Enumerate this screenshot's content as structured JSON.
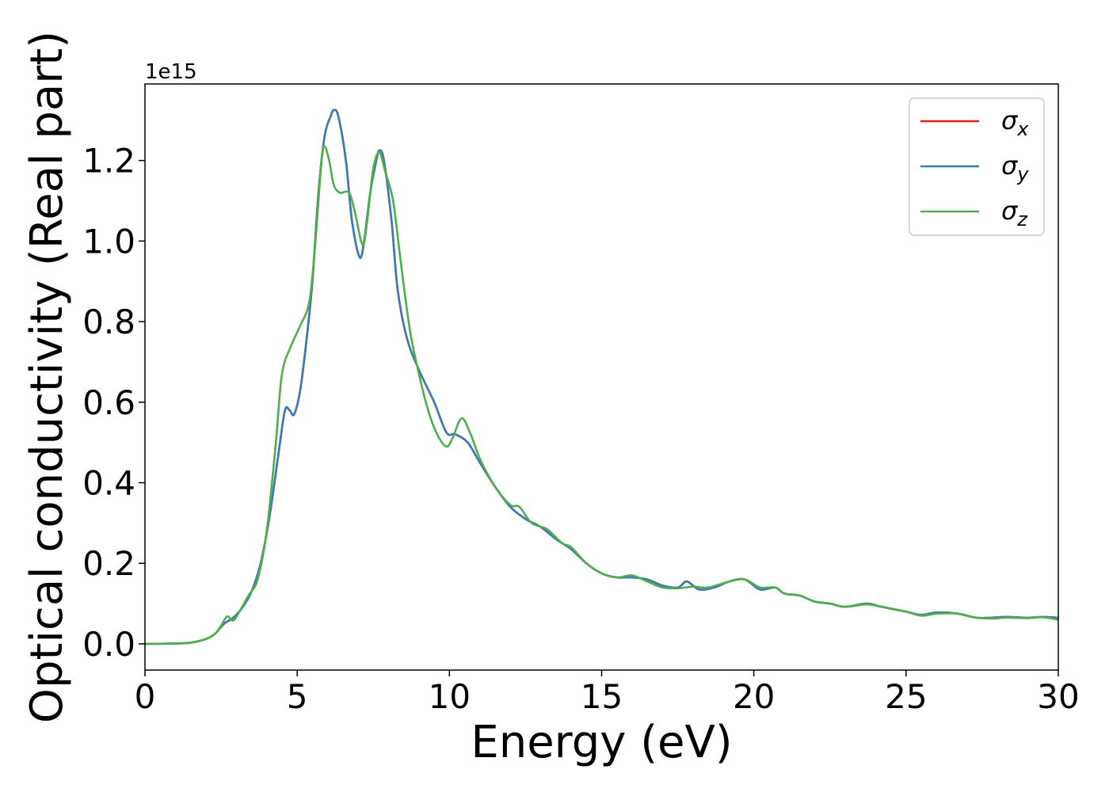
{
  "chart_data": {
    "type": "line",
    "xlabel": "Energy (eV)",
    "ylabel": "Optical conductivity (Real part)",
    "y_offset_label": "1e15",
    "xlim": [
      0,
      30
    ],
    "ylim": [
      -0.065,
      1.39
    ],
    "x_ticks": [
      0,
      5,
      10,
      15,
      20,
      25,
      30
    ],
    "y_ticks": [
      0.0,
      0.2,
      0.4,
      0.6,
      0.8,
      1.0,
      1.2
    ],
    "x_tick_labels": [
      "0",
      "5",
      "10",
      "15",
      "20",
      "25",
      "30"
    ],
    "y_tick_labels": [
      "0.0",
      "0.2",
      "0.4",
      "0.6",
      "0.8",
      "1.0",
      "1.2"
    ],
    "grid": false,
    "legend_position": "top-right",
    "series": [
      {
        "name": "σx",
        "symbol": "σ",
        "subscript": "x",
        "color": "#e41a1c",
        "points": [
          [
            0,
            0
          ],
          [
            1,
            0.001
          ],
          [
            1.5,
            0.003
          ],
          [
            2,
            0.012
          ],
          [
            2.3,
            0.025
          ],
          [
            2.6,
            0.05
          ],
          [
            2.9,
            0.065
          ],
          [
            3.2,
            0.09
          ],
          [
            3.5,
            0.13
          ],
          [
            3.8,
            0.2
          ],
          [
            4.1,
            0.32
          ],
          [
            4.4,
            0.48
          ],
          [
            4.6,
            0.58
          ],
          [
            4.75,
            0.58
          ],
          [
            4.9,
            0.57
          ],
          [
            5.1,
            0.63
          ],
          [
            5.3,
            0.75
          ],
          [
            5.5,
            0.9
          ],
          [
            5.7,
            1.12
          ],
          [
            5.9,
            1.26
          ],
          [
            6.1,
            1.31
          ],
          [
            6.2,
            1.325
          ],
          [
            6.35,
            1.31
          ],
          [
            6.6,
            1.2
          ],
          [
            6.8,
            1.05
          ],
          [
            7.05,
            0.96
          ],
          [
            7.2,
            1.0
          ],
          [
            7.4,
            1.12
          ],
          [
            7.6,
            1.2
          ],
          [
            7.7,
            1.225
          ],
          [
            7.85,
            1.2
          ],
          [
            8.1,
            1.05
          ],
          [
            8.3,
            0.88
          ],
          [
            8.6,
            0.76
          ],
          [
            9,
            0.68
          ],
          [
            9.5,
            0.6
          ],
          [
            9.9,
            0.525
          ],
          [
            10.2,
            0.52
          ],
          [
            10.6,
            0.5
          ],
          [
            11,
            0.45
          ],
          [
            11.5,
            0.39
          ],
          [
            12,
            0.34
          ],
          [
            12.5,
            0.31
          ],
          [
            13,
            0.29
          ],
          [
            13.5,
            0.26
          ],
          [
            14,
            0.235
          ],
          [
            14.5,
            0.2
          ],
          [
            15,
            0.175
          ],
          [
            15.5,
            0.165
          ],
          [
            16,
            0.165
          ],
          [
            16.5,
            0.16
          ],
          [
            17,
            0.145
          ],
          [
            17.5,
            0.14
          ],
          [
            17.8,
            0.155
          ],
          [
            18.2,
            0.135
          ],
          [
            18.7,
            0.14
          ],
          [
            19.2,
            0.155
          ],
          [
            19.7,
            0.16
          ],
          [
            20.2,
            0.135
          ],
          [
            20.7,
            0.14
          ],
          [
            21,
            0.125
          ],
          [
            21.5,
            0.12
          ],
          [
            22,
            0.105
          ],
          [
            22.5,
            0.1
          ],
          [
            23,
            0.092
          ],
          [
            23.7,
            0.1
          ],
          [
            24.2,
            0.092
          ],
          [
            25,
            0.08
          ],
          [
            25.5,
            0.072
          ],
          [
            26,
            0.078
          ],
          [
            26.7,
            0.075
          ],
          [
            27.3,
            0.065
          ],
          [
            27.8,
            0.065
          ],
          [
            28.3,
            0.067
          ],
          [
            29,
            0.065
          ],
          [
            29.5,
            0.067
          ],
          [
            30,
            0.065
          ]
        ]
      },
      {
        "name": "σy",
        "symbol": "σ",
        "subscript": "y",
        "color": "#377eb8",
        "points": [
          [
            0,
            0
          ],
          [
            1,
            0.001
          ],
          [
            1.5,
            0.003
          ],
          [
            2,
            0.012
          ],
          [
            2.3,
            0.025
          ],
          [
            2.6,
            0.05
          ],
          [
            2.9,
            0.065
          ],
          [
            3.2,
            0.09
          ],
          [
            3.5,
            0.13
          ],
          [
            3.8,
            0.2
          ],
          [
            4.1,
            0.32
          ],
          [
            4.4,
            0.48
          ],
          [
            4.6,
            0.58
          ],
          [
            4.75,
            0.58
          ],
          [
            4.9,
            0.57
          ],
          [
            5.1,
            0.63
          ],
          [
            5.3,
            0.75
          ],
          [
            5.5,
            0.9
          ],
          [
            5.7,
            1.12
          ],
          [
            5.9,
            1.26
          ],
          [
            6.1,
            1.31
          ],
          [
            6.2,
            1.325
          ],
          [
            6.35,
            1.31
          ],
          [
            6.6,
            1.2
          ],
          [
            6.8,
            1.05
          ],
          [
            7.05,
            0.96
          ],
          [
            7.2,
            1.0
          ],
          [
            7.4,
            1.12
          ],
          [
            7.6,
            1.2
          ],
          [
            7.7,
            1.225
          ],
          [
            7.85,
            1.2
          ],
          [
            8.1,
            1.05
          ],
          [
            8.3,
            0.88
          ],
          [
            8.6,
            0.76
          ],
          [
            9,
            0.68
          ],
          [
            9.5,
            0.6
          ],
          [
            9.9,
            0.525
          ],
          [
            10.2,
            0.52
          ],
          [
            10.6,
            0.5
          ],
          [
            11,
            0.45
          ],
          [
            11.5,
            0.39
          ],
          [
            12,
            0.34
          ],
          [
            12.5,
            0.31
          ],
          [
            13,
            0.29
          ],
          [
            13.5,
            0.26
          ],
          [
            14,
            0.235
          ],
          [
            14.5,
            0.2
          ],
          [
            15,
            0.175
          ],
          [
            15.5,
            0.165
          ],
          [
            16,
            0.165
          ],
          [
            16.5,
            0.16
          ],
          [
            17,
            0.145
          ],
          [
            17.5,
            0.14
          ],
          [
            17.8,
            0.155
          ],
          [
            18.2,
            0.135
          ],
          [
            18.7,
            0.14
          ],
          [
            19.2,
            0.155
          ],
          [
            19.7,
            0.16
          ],
          [
            20.2,
            0.135
          ],
          [
            20.7,
            0.14
          ],
          [
            21,
            0.125
          ],
          [
            21.5,
            0.12
          ],
          [
            22,
            0.105
          ],
          [
            22.5,
            0.1
          ],
          [
            23,
            0.092
          ],
          [
            23.7,
            0.1
          ],
          [
            24.2,
            0.092
          ],
          [
            25,
            0.08
          ],
          [
            25.5,
            0.072
          ],
          [
            26,
            0.078
          ],
          [
            26.7,
            0.075
          ],
          [
            27.3,
            0.065
          ],
          [
            27.8,
            0.065
          ],
          [
            28.3,
            0.067
          ],
          [
            29,
            0.065
          ],
          [
            29.5,
            0.067
          ],
          [
            30,
            0.065
          ]
        ]
      },
      {
        "name": "σz",
        "symbol": "σ",
        "subscript": "z",
        "color": "#4daf4a",
        "points": [
          [
            0,
            0
          ],
          [
            1,
            0.001
          ],
          [
            1.5,
            0.003
          ],
          [
            2,
            0.012
          ],
          [
            2.3,
            0.025
          ],
          [
            2.5,
            0.045
          ],
          [
            2.7,
            0.068
          ],
          [
            2.9,
            0.058
          ],
          [
            3.1,
            0.08
          ],
          [
            3.4,
            0.12
          ],
          [
            3.7,
            0.16
          ],
          [
            4,
            0.28
          ],
          [
            4.3,
            0.5
          ],
          [
            4.5,
            0.67
          ],
          [
            4.8,
            0.74
          ],
          [
            5.1,
            0.79
          ],
          [
            5.4,
            0.85
          ],
          [
            5.6,
            1.0
          ],
          [
            5.8,
            1.2
          ],
          [
            5.9,
            1.235
          ],
          [
            6.05,
            1.2
          ],
          [
            6.2,
            1.14
          ],
          [
            6.4,
            1.12
          ],
          [
            6.7,
            1.12
          ],
          [
            6.9,
            1.07
          ],
          [
            7.15,
            0.99
          ],
          [
            7.3,
            1.05
          ],
          [
            7.5,
            1.18
          ],
          [
            7.7,
            1.22
          ],
          [
            7.9,
            1.17
          ],
          [
            8.15,
            1.1
          ],
          [
            8.4,
            0.95
          ],
          [
            8.7,
            0.78
          ],
          [
            9,
            0.67
          ],
          [
            9.3,
            0.58
          ],
          [
            9.6,
            0.52
          ],
          [
            9.9,
            0.49
          ],
          [
            10.1,
            0.51
          ],
          [
            10.4,
            0.56
          ],
          [
            10.7,
            0.52
          ],
          [
            11,
            0.46
          ],
          [
            11.5,
            0.39
          ],
          [
            12,
            0.345
          ],
          [
            12.3,
            0.34
          ],
          [
            12.7,
            0.3
          ],
          [
            13.2,
            0.285
          ],
          [
            13.7,
            0.25
          ],
          [
            14,
            0.24
          ],
          [
            14.5,
            0.2
          ],
          [
            15,
            0.175
          ],
          [
            15.5,
            0.165
          ],
          [
            16,
            0.17
          ],
          [
            16.5,
            0.155
          ],
          [
            17,
            0.14
          ],
          [
            17.5,
            0.138
          ],
          [
            18,
            0.142
          ],
          [
            18.5,
            0.14
          ],
          [
            19.2,
            0.155
          ],
          [
            19.7,
            0.16
          ],
          [
            20.2,
            0.14
          ],
          [
            20.7,
            0.14
          ],
          [
            21,
            0.125
          ],
          [
            21.5,
            0.12
          ],
          [
            22,
            0.105
          ],
          [
            22.5,
            0.1
          ],
          [
            23,
            0.092
          ],
          [
            23.7,
            0.098
          ],
          [
            24.2,
            0.092
          ],
          [
            25,
            0.08
          ],
          [
            25.5,
            0.07
          ],
          [
            26,
            0.075
          ],
          [
            26.7,
            0.075
          ],
          [
            27.3,
            0.065
          ],
          [
            27.8,
            0.063
          ],
          [
            28.3,
            0.065
          ],
          [
            29,
            0.064
          ],
          [
            29.5,
            0.066
          ],
          [
            30,
            0.06
          ]
        ]
      }
    ]
  }
}
